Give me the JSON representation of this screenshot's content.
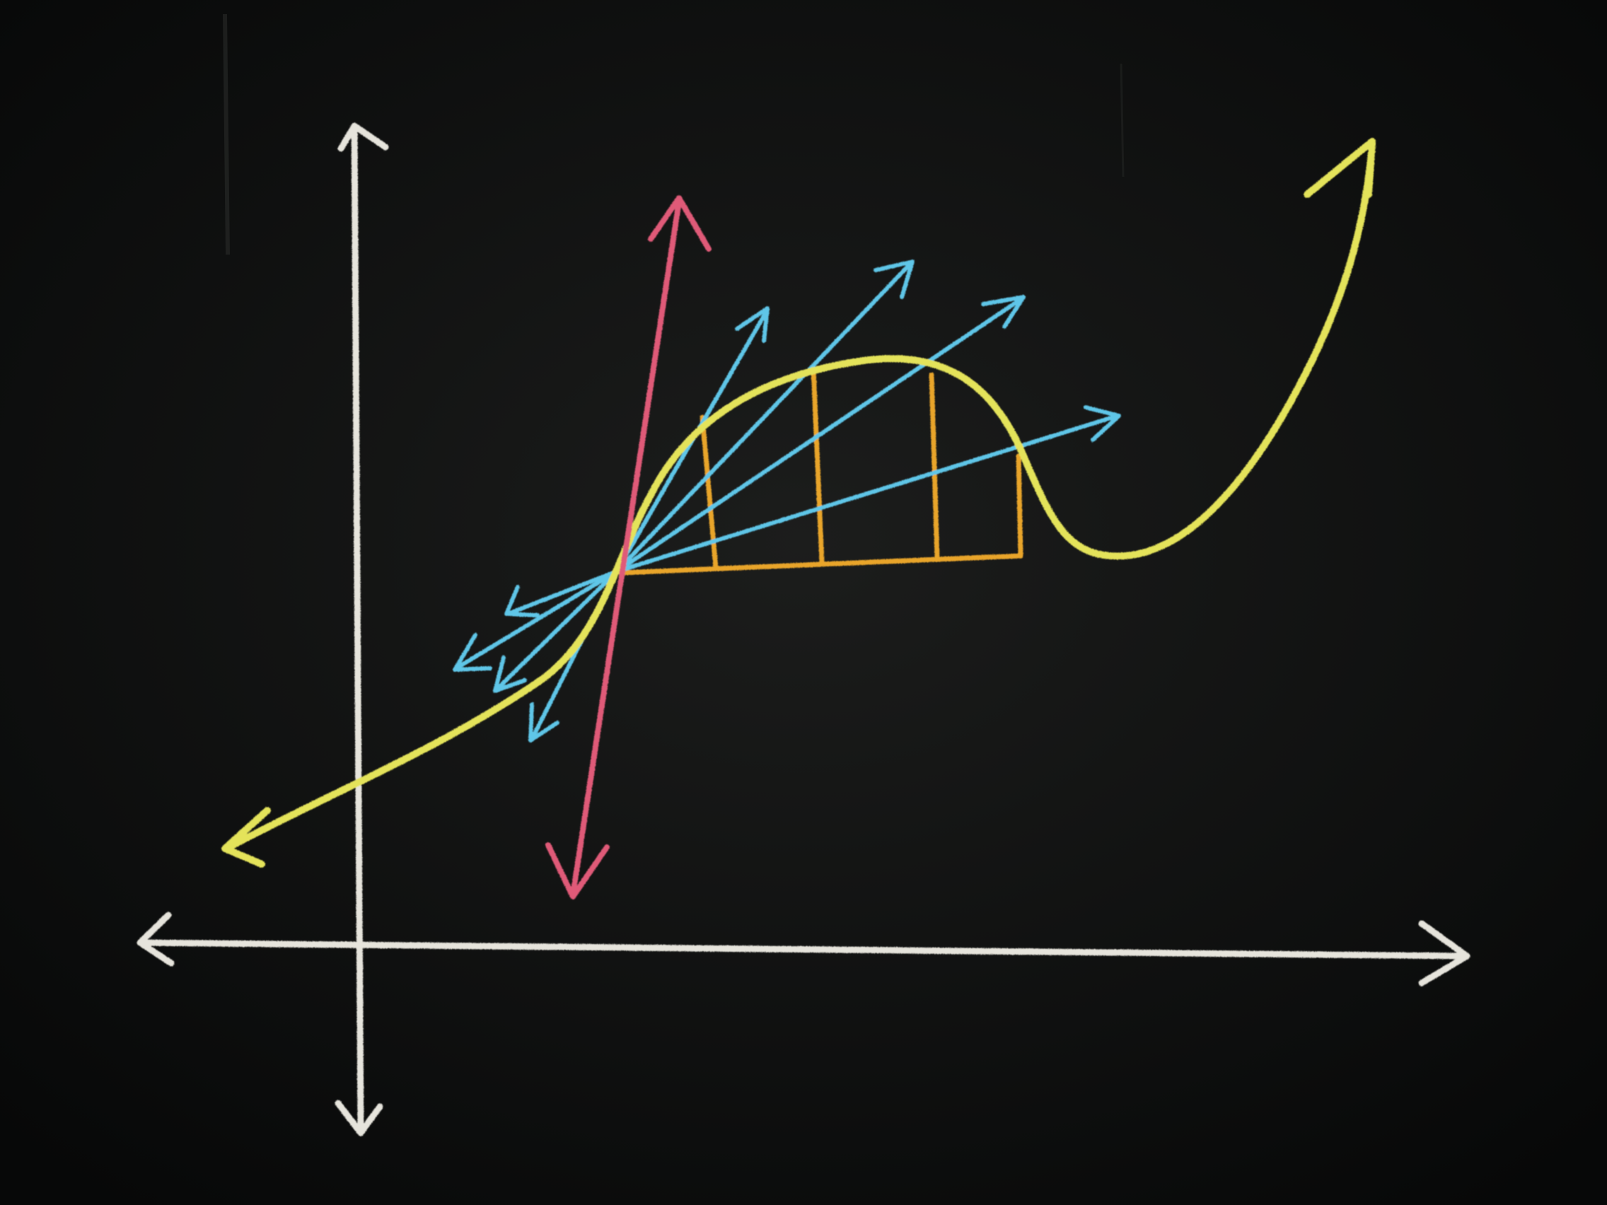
{
  "scene": {
    "board_colors": {
      "center": "#1c1d1c",
      "edge": "#070808"
    },
    "chalk_colors": {
      "axes": "#e6e4dc",
      "curve": "#e4e35a",
      "secant": "#e05a78",
      "rays": "#5fc6e8",
      "riemann": "#e9a52a"
    }
  }
}
